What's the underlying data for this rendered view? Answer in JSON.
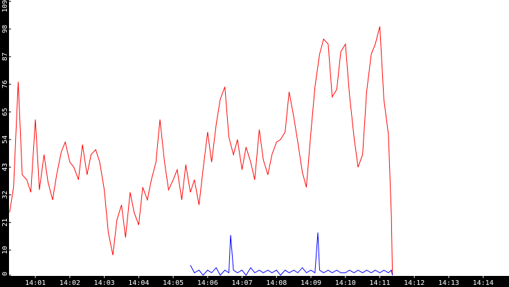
{
  "chart_data": {
    "type": "line",
    "title": "",
    "xlabel": "",
    "ylabel": "",
    "ylim": [
      0,
      109
    ],
    "xlim": [
      "14:00:14",
      "14:14:45"
    ],
    "grid": false,
    "legend": "none",
    "background": "#ffffff",
    "axis_background": "#000000",
    "axis_text_color": "#ffffff",
    "y_ticks": [
      0,
      10,
      21,
      32,
      43,
      54,
      65,
      76,
      87,
      98,
      109
    ],
    "y_tick_labels": [
      "0",
      "10",
      "21",
      "32",
      "43",
      "54",
      "65",
      "76",
      "87",
      "98",
      "109"
    ],
    "x_ticks": [
      "14:01",
      "14:02",
      "14:03",
      "14:04",
      "14:05",
      "14:06",
      "14:07",
      "14:08",
      "14:09",
      "14:10",
      "14:11",
      "14:12",
      "14:13",
      "14:14"
    ],
    "series": [
      {
        "color": "#ff0000",
        "x": [
          "14:00:15",
          "14:00:22",
          "14:00:30",
          "14:00:37",
          "14:00:45",
          "14:00:52",
          "14:01:00",
          "14:01:07",
          "14:01:15",
          "14:01:22",
          "14:01:30",
          "14:01:37",
          "14:01:45",
          "14:01:52",
          "14:02:00",
          "14:02:07",
          "14:02:15",
          "14:02:22",
          "14:02:30",
          "14:02:37",
          "14:02:45",
          "14:02:52",
          "14:03:00",
          "14:03:07",
          "14:03:15",
          "14:03:22",
          "14:03:30",
          "14:03:37",
          "14:03:45",
          "14:03:52",
          "14:04:00",
          "14:04:07",
          "14:04:15",
          "14:04:22",
          "14:04:30",
          "14:04:37",
          "14:04:45",
          "14:04:52",
          "14:05:00",
          "14:05:07",
          "14:05:15",
          "14:05:22",
          "14:05:30",
          "14:05:37",
          "14:05:45",
          "14:05:52",
          "14:06:00",
          "14:06:07",
          "14:06:15",
          "14:06:22",
          "14:06:30",
          "14:06:37",
          "14:06:45",
          "14:06:52",
          "14:07:00",
          "14:07:07",
          "14:07:15",
          "14:07:22",
          "14:07:30",
          "14:07:37",
          "14:07:45",
          "14:07:52",
          "14:08:00",
          "14:08:07",
          "14:08:15",
          "14:08:22",
          "14:08:30",
          "14:08:37",
          "14:08:45",
          "14:08:52",
          "14:09:00",
          "14:09:07",
          "14:09:15",
          "14:09:22",
          "14:09:30",
          "14:09:37",
          "14:09:45",
          "14:09:52",
          "14:10:00",
          "14:10:07",
          "14:10:15",
          "14:10:22",
          "14:10:30",
          "14:10:37",
          "14:10:45",
          "14:10:52",
          "14:11:00",
          "14:11:07",
          "14:11:15",
          "14:11:20",
          "14:11:22"
        ],
        "values": [
          25,
          35,
          77,
          40,
          38,
          33,
          62,
          34,
          48,
          37,
          30,
          40,
          49,
          53,
          45,
          43,
          38,
          52,
          40,
          48,
          50,
          45,
          34,
          17,
          8,
          22,
          28,
          15,
          33,
          25,
          20,
          35,
          30,
          38,
          45,
          62,
          45,
          34,
          38,
          42,
          30,
          44,
          33,
          38,
          28,
          42,
          57,
          45,
          60,
          70,
          75,
          55,
          48,
          54,
          42,
          51,
          45,
          38,
          58,
          46,
          40,
          48,
          53,
          54,
          57,
          73,
          63,
          53,
          41,
          35,
          57,
          75,
          88,
          94,
          92,
          71,
          74,
          89,
          92,
          72,
          55,
          43,
          48,
          73,
          88,
          92,
          99,
          70,
          56,
          24,
          0
        ]
      },
      {
        "color": "#0000ff",
        "x": [
          "14:05:30",
          "14:05:37",
          "14:05:45",
          "14:05:52",
          "14:06:00",
          "14:06:07",
          "14:06:15",
          "14:06:22",
          "14:06:30",
          "14:06:37",
          "14:06:40",
          "14:06:45",
          "14:06:52",
          "14:07:00",
          "14:07:07",
          "14:07:15",
          "14:07:22",
          "14:07:30",
          "14:07:37",
          "14:07:45",
          "14:07:52",
          "14:08:00",
          "14:08:07",
          "14:08:15",
          "14:08:22",
          "14:08:30",
          "14:08:37",
          "14:08:45",
          "14:08:52",
          "14:09:00",
          "14:09:07",
          "14:09:12",
          "14:09:15",
          "14:09:22",
          "14:09:30",
          "14:09:37",
          "14:09:45",
          "14:09:52",
          "14:10:00",
          "14:10:07",
          "14:10:15",
          "14:10:22",
          "14:10:30",
          "14:10:37",
          "14:10:45",
          "14:10:52",
          "14:11:00",
          "14:11:07",
          "14:11:15",
          "14:11:20",
          "14:11:22"
        ],
        "values": [
          4,
          1,
          2,
          0,
          2,
          1,
          3,
          0,
          2,
          1,
          16,
          2,
          1,
          2,
          0,
          3,
          1,
          2,
          1,
          2,
          1,
          2,
          0,
          2,
          1,
          2,
          1,
          3,
          1,
          2,
          1,
          17,
          2,
          1,
          2,
          1,
          2,
          1,
          1,
          2,
          1,
          2,
          1,
          2,
          1,
          2,
          1,
          2,
          1,
          2,
          0
        ]
      }
    ]
  }
}
